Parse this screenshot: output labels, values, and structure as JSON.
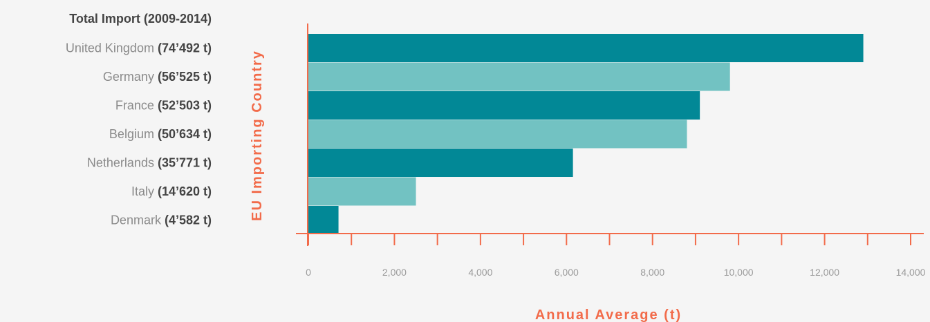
{
  "chart_data": {
    "type": "bar",
    "orientation": "horizontal",
    "legend_title": "Total Import (2009-2014)",
    "xlabel": "Annual Average (t)",
    "ylabel": "EU Importing Country",
    "xlim": [
      0,
      14000
    ],
    "xticks": [
      0,
      2000,
      4000,
      6000,
      8000,
      10000,
      12000,
      14000
    ],
    "xtick_labels": [
      "0",
      "2,000",
      "4,000",
      "6,000",
      "8,000",
      "10,000",
      "12,000",
      "14,000"
    ],
    "categories": [
      "United Kingdom",
      "Germany",
      "France",
      "Belgium",
      "Netherlands",
      "Italy",
      "Denmark"
    ],
    "totals": [
      "(74’492 t)",
      "(56’525 t)",
      "(52’503 t)",
      "(50’634 t)",
      "(35’771 t)",
      "(14’620 t)",
      "(4’582 t)"
    ],
    "values": [
      12900,
      9800,
      9100,
      8800,
      6150,
      2500,
      700
    ],
    "grid": false,
    "colors": {
      "bar_dark": "#028896",
      "bar_light": "#72c2c2",
      "axis": "#f26b4a",
      "axis_title": "#f26b4a"
    }
  }
}
